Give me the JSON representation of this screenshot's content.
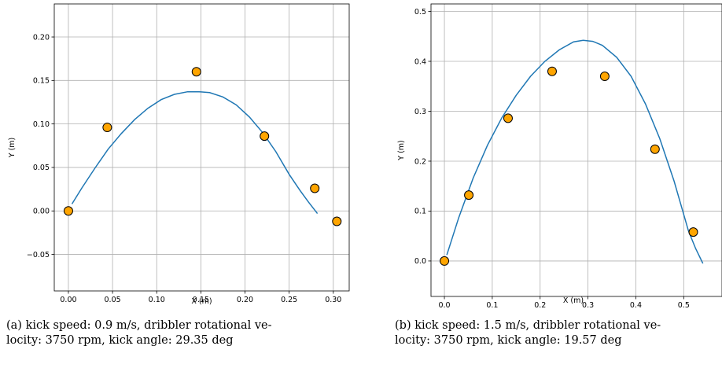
{
  "chart_data": [
    {
      "type": "scatter",
      "xlabel": "X (m)",
      "ylabel": "Y (m)",
      "xlim": [
        -0.016,
        0.318
      ],
      "ylim": [
        -0.092,
        0.238
      ],
      "xticks": [
        "0.00",
        "0.05",
        "0.10",
        "0.15",
        "0.20",
        "0.25",
        "0.30"
      ],
      "yticks": [
        "−0.05",
        "0.00",
        "0.05",
        "0.10",
        "0.15",
        "0.20"
      ],
      "grid": true,
      "points": {
        "x": [
          0.0,
          0.044,
          0.145,
          0.222,
          0.279,
          0.304
        ],
        "y": [
          0.0,
          0.096,
          0.16,
          0.086,
          0.026,
          -0.012
        ],
        "color": "#ffa500"
      },
      "curve": {
        "x": [
          0.004,
          0.015,
          0.03,
          0.045,
          0.06,
          0.075,
          0.09,
          0.105,
          0.12,
          0.135,
          0.148,
          0.16,
          0.175,
          0.19,
          0.205,
          0.22,
          0.235,
          0.25,
          0.262,
          0.272,
          0.282
        ],
        "y": [
          0.008,
          0.026,
          0.049,
          0.071,
          0.089,
          0.105,
          0.118,
          0.128,
          0.134,
          0.137,
          0.137,
          0.136,
          0.131,
          0.122,
          0.108,
          0.09,
          0.068,
          0.042,
          0.024,
          0.01,
          -0.003
        ],
        "color": "#1f77b4"
      },
      "caption": "(a) kick speed: 0.9 m/s, dribbler rotational ve-\nlocity: 3750 rpm, kick angle: 29.35 deg"
    },
    {
      "type": "scatter",
      "xlabel": "X (m)",
      "ylabel": "Y (m)",
      "xlim": [
        -0.028,
        0.58
      ],
      "ylim": [
        -0.071,
        0.515
      ],
      "xticks": [
        "0.0",
        "0.1",
        "0.2",
        "0.3",
        "0.4",
        "0.5"
      ],
      "yticks": [
        "0.0",
        "0.1",
        "0.2",
        "0.3",
        "0.4",
        "0.5"
      ],
      "grid": true,
      "points": {
        "x": [
          0.0,
          0.051,
          0.133,
          0.225,
          0.335,
          0.44,
          0.52
        ],
        "y": [
          0.0,
          0.132,
          0.286,
          0.38,
          0.37,
          0.224,
          0.058
        ],
        "color": "#ffa500"
      },
      "curve": {
        "x": [
          0.005,
          0.03,
          0.06,
          0.09,
          0.12,
          0.15,
          0.18,
          0.21,
          0.24,
          0.27,
          0.29,
          0.31,
          0.33,
          0.36,
          0.39,
          0.42,
          0.45,
          0.48,
          0.51,
          0.525,
          0.54
        ],
        "y": [
          0.012,
          0.087,
          0.166,
          0.232,
          0.287,
          0.332,
          0.37,
          0.4,
          0.423,
          0.439,
          0.442,
          0.44,
          0.432,
          0.408,
          0.37,
          0.315,
          0.245,
          0.16,
          0.06,
          0.025,
          -0.005
        ],
        "color": "#1f77b4"
      },
      "caption": "(b) kick speed: 1.5 m/s, dribbler rotational ve-\nlocity: 3750 rpm, kick angle: 19.57 deg"
    }
  ]
}
